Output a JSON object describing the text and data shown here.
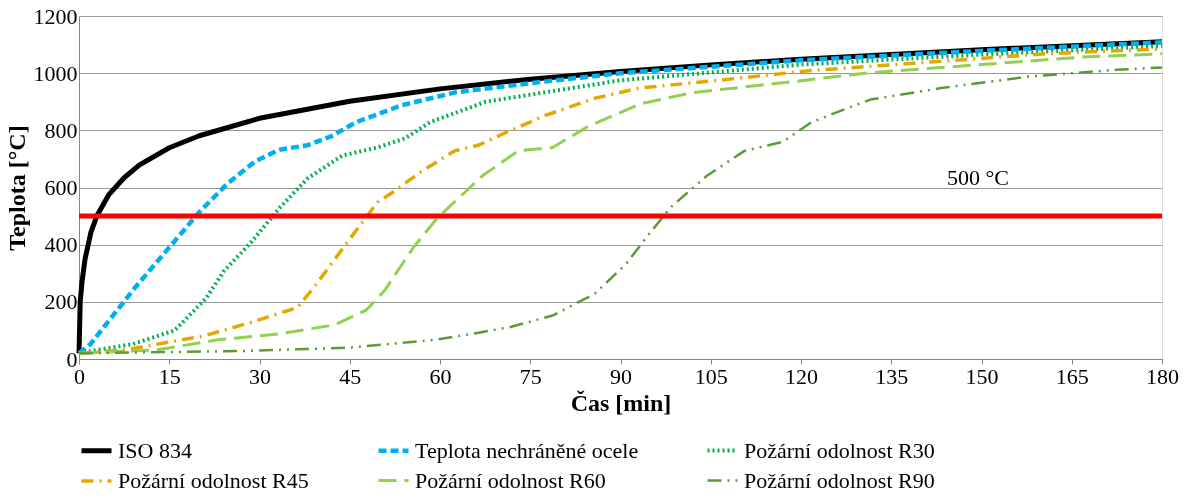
{
  "chart_data": {
    "type": "line",
    "xlabel": "Čas  [min]",
    "ylabel": "Teplota [°C]",
    "xlim": [
      0,
      180
    ],
    "xticks": [
      0,
      15,
      30,
      45,
      60,
      75,
      90,
      105,
      120,
      135,
      150,
      165,
      180
    ],
    "ylim": [
      0,
      1200
    ],
    "yticks": [
      0,
      200,
      400,
      600,
      800,
      1000,
      1200
    ],
    "grid": "y",
    "legend": "bottom",
    "marker": "none",
    "ref_lines": [
      {
        "axis": "y",
        "value": 500,
        "label": "500 °C",
        "color": "#ff0000",
        "line_style": "solid"
      }
    ],
    "series": [
      {
        "name": "ISO 834",
        "color": "#000000",
        "line_style": "solid",
        "x": [
          0,
          0.2,
          0.5,
          1,
          2,
          3,
          5,
          7.5,
          10,
          15,
          20,
          30,
          45,
          60,
          75,
          90,
          105,
          120,
          150,
          180
        ],
        "values": [
          20,
          200,
          270,
          349,
          445,
          502,
          576,
          634,
          678,
          739,
          781,
          842,
          902,
          945,
          979,
          1006,
          1029,
          1049,
          1082,
          1110
        ]
      },
      {
        "name": "Teplota nechráněné ocele",
        "color": "#00b0f0",
        "line_style": "dashed",
        "x": [
          0,
          1.9,
          9.4,
          15.4,
          19.9,
          24.6,
          29.3,
          33.3,
          38,
          42,
          46,
          53.7,
          62.4,
          75,
          90,
          120,
          150,
          180
        ],
        "values": [
          20,
          52,
          252,
          400,
          512,
          612,
          692,
          732,
          748,
          780,
          828,
          888,
          932,
          965,
          1000,
          1045,
          1078,
          1108
        ]
      },
      {
        "name": "Požární odolnost R30",
        "color": "#00b050",
        "line_style": "dotted",
        "x": [
          0,
          2,
          8.9,
          15.9,
          21.1,
          24.1,
          28.6,
          33.3,
          38,
          43.8,
          49.6,
          54.2,
          58.3,
          67.6,
          90,
          120,
          150,
          180
        ],
        "values": [
          20,
          28,
          52,
          100,
          212,
          308,
          408,
          528,
          632,
          712,
          740,
          772,
          828,
          900,
          975,
          1030,
          1065,
          1095
        ]
      },
      {
        "name": "Požární odolnost R45",
        "color": "#e6a800",
        "line_style": "dashdot",
        "x": [
          0,
          7.7,
          20.6,
          28.6,
          36.3,
          39.1,
          44.3,
          49.6,
          52.5,
          56.6,
          62.4,
          66.4,
          70.5,
          77.5,
          85.7,
          93.2,
          104.9,
          121,
          160.8,
          180
        ],
        "values": [
          20,
          32,
          80,
          128,
          180,
          252,
          400,
          548,
          588,
          652,
          728,
          748,
          788,
          852,
          912,
          948,
          972,
          1008,
          1068,
          1085
        ]
      },
      {
        "name": "Požární odolnost R60",
        "color": "#92d050",
        "line_style": "longdash",
        "x": [
          0,
          12.9,
          23.4,
          33.3,
          42.6,
          47.8,
          50.8,
          55.5,
          59.5,
          67,
          73,
          78.7,
          84.5,
          93.2,
          102,
          119.4,
          130.6,
          166.6,
          180
        ],
        "values": [
          20,
          32,
          68,
          88,
          120,
          172,
          240,
          388,
          492,
          640,
          728,
          740,
          812,
          892,
          932,
          972,
          1000,
          1056,
          1068
        ]
      },
      {
        "name": "Požární odolnost R90",
        "color": "#5b9b3a",
        "line_style": "dashdotdot",
        "x": [
          0,
          27.6,
          45,
          59.5,
          66.4,
          71.7,
          78.7,
          85.7,
          90.9,
          94.4,
          98.4,
          104.3,
          110.6,
          117,
          121.7,
          128,
          131.6,
          143.3,
          157.8,
          172.5,
          180
        ],
        "values": [
          20,
          28,
          40,
          68,
          92,
          112,
          152,
          228,
          332,
          428,
          532,
          640,
          728,
          760,
          828,
          880,
          908,
          948,
          988,
          1012,
          1020
        ]
      }
    ]
  }
}
